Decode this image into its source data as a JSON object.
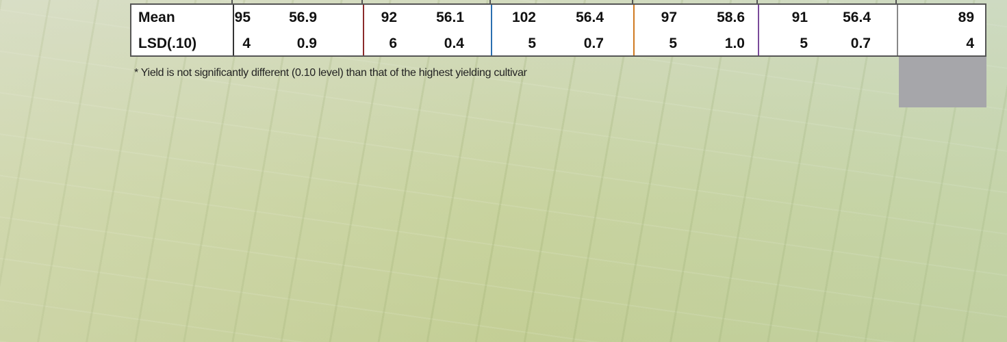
{
  "table": {
    "rows": [
      [
        "Mean",
        "95",
        "56.9",
        "92",
        "56.1",
        "102",
        "56.4",
        "97",
        "58.6",
        "91",
        "56.4",
        "89"
      ],
      [
        "LSD(.10)",
        "4",
        "0.9",
        "6",
        "0.4",
        "5",
        "0.7",
        "5",
        "1.0",
        "5",
        "0.7",
        "4"
      ]
    ]
  },
  "footnote": "* Yield is not significantly different (0.10 level) than that of the highest yielding cultivar"
}
